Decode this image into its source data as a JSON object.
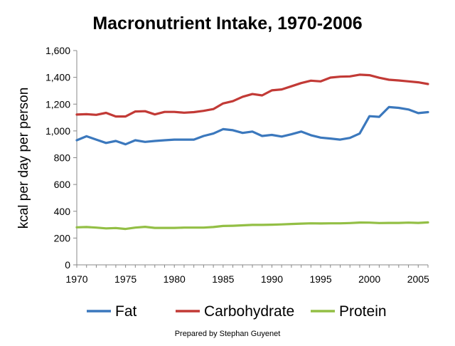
{
  "chart_data": {
    "type": "line",
    "title": "Macronutrient Intake, 1970-2006",
    "xlabel": "",
    "ylabel": "kcal per day per person",
    "xlim": [
      1970,
      2006
    ],
    "ylim": [
      0,
      1600
    ],
    "x_ticks": [
      "1970",
      "1975",
      "1980",
      "1985",
      "1990",
      "1995",
      "2000",
      "2005"
    ],
    "y_ticks": [
      "0",
      "200",
      "400",
      "600",
      "800",
      "1,000",
      "1,200",
      "1,400",
      "1,600"
    ],
    "grid": false,
    "legend_position": "bottom",
    "x": [
      1970,
      1971,
      1972,
      1973,
      1974,
      1975,
      1976,
      1977,
      1978,
      1979,
      1980,
      1981,
      1982,
      1983,
      1984,
      1985,
      1986,
      1987,
      1988,
      1989,
      1990,
      1991,
      1992,
      1993,
      1994,
      1995,
      1996,
      1997,
      1998,
      1999,
      2000,
      2001,
      2002,
      2003,
      2004,
      2005,
      2006
    ],
    "series": [
      {
        "name": "Fat",
        "color": "#3b78bd",
        "values": [
          930,
          960,
          935,
          910,
          925,
          900,
          930,
          918,
          925,
          930,
          935,
          935,
          935,
          962,
          980,
          1013,
          1005,
          985,
          995,
          962,
          970,
          958,
          975,
          995,
          968,
          950,
          943,
          935,
          948,
          980,
          1110,
          1105,
          1178,
          1172,
          1160,
          1133,
          1140
        ]
      },
      {
        "name": "Carbohydrate",
        "color": "#c23a36",
        "values": [
          1122,
          1125,
          1120,
          1135,
          1108,
          1108,
          1145,
          1147,
          1123,
          1142,
          1142,
          1136,
          1140,
          1150,
          1163,
          1205,
          1222,
          1255,
          1275,
          1265,
          1303,
          1310,
          1333,
          1357,
          1375,
          1370,
          1398,
          1405,
          1407,
          1420,
          1416,
          1397,
          1382,
          1377,
          1370,
          1363,
          1350
        ]
      },
      {
        "name": "Protein",
        "color": "#93bf45",
        "values": [
          280,
          282,
          278,
          272,
          275,
          268,
          278,
          284,
          276,
          276,
          276,
          278,
          278,
          278,
          282,
          290,
          292,
          295,
          298,
          298,
          300,
          302,
          305,
          308,
          310,
          309,
          310,
          310,
          312,
          316,
          315,
          312,
          313,
          313,
          315,
          313,
          317
        ]
      }
    ]
  },
  "footer": {
    "credit": "Prepared by Stephan Guyenet"
  }
}
